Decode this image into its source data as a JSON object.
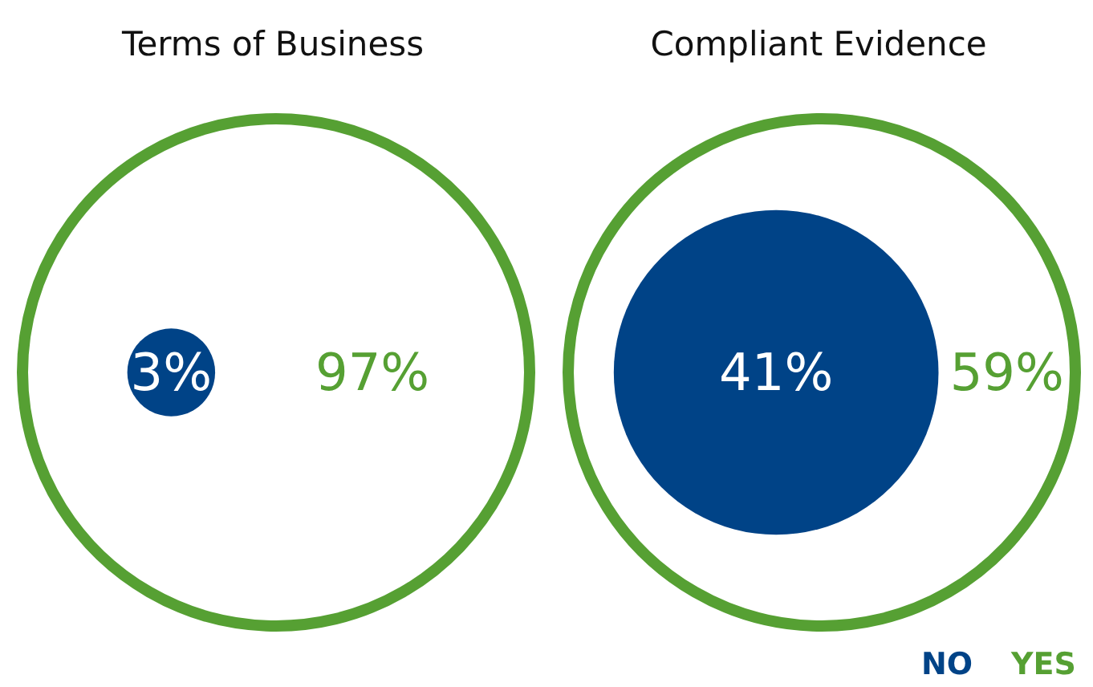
{
  "chart_data": [
    {
      "type": "other",
      "title": "Terms of Business",
      "categories": [
        null,
        null
      ],
      "values": [
        3,
        97
      ],
      "value_labels": [
        "3%",
        "97%"
      ],
      "colors": [
        "#004387",
        "#56a033"
      ]
    },
    {
      "type": "other",
      "title": "Compliant Evidence",
      "categories": [
        "NO",
        "YES"
      ],
      "values": [
        41,
        59
      ],
      "value_labels": [
        "41%",
        "59%"
      ],
      "colors": [
        "#004387",
        "#56a033"
      ]
    }
  ]
}
